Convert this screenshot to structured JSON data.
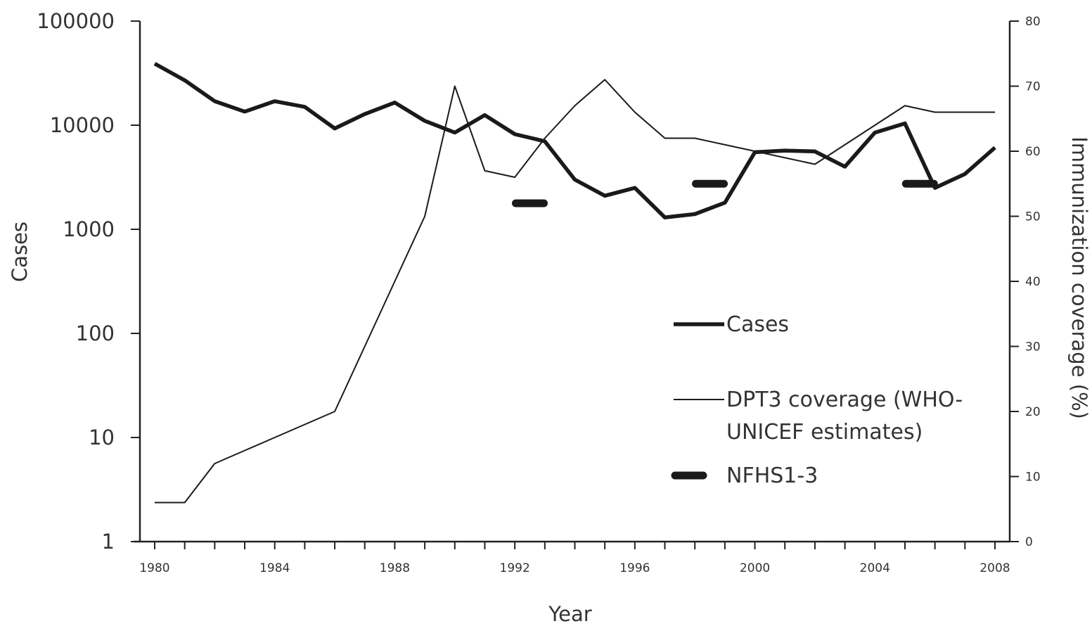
{
  "chart_data": {
    "type": "line",
    "xlabel": "Year",
    "ylabel": "Cases",
    "y2label": "Immunization coverage (%)",
    "xlim": [
      1980,
      2008
    ],
    "x_ticks": [
      1980,
      1984,
      1988,
      1992,
      1996,
      2000,
      2004,
      2008
    ],
    "ylim": [
      1,
      100000
    ],
    "y_scale": "log",
    "y_ticks": [
      1,
      10,
      100,
      1000,
      10000,
      100000
    ],
    "y2lim": [
      0,
      80
    ],
    "y2_ticks": [
      0,
      10,
      20,
      30,
      40,
      50,
      60,
      70,
      80
    ],
    "legend_position": "lower-right",
    "series": [
      {
        "name": "Cases",
        "axis": "left",
        "style": "thick-line",
        "x": [
          1980,
          1981,
          1982,
          1983,
          1984,
          1985,
          1986,
          1987,
          1988,
          1989,
          1990,
          1991,
          1992,
          1993,
          1994,
          1995,
          1996,
          1997,
          1998,
          1999,
          2000,
          2001,
          2002,
          2003,
          2004,
          2005,
          2006,
          2007,
          2008
        ],
        "values": [
          39000,
          27000,
          17000,
          13500,
          17000,
          15000,
          9300,
          12800,
          16500,
          11000,
          8500,
          12500,
          8200,
          7000,
          3000,
          2100,
          2500,
          1300,
          1400,
          1800,
          5500,
          5700,
          5600,
          4000,
          8500,
          10400,
          2500,
          3400,
          6100
        ]
      },
      {
        "name": "DPT3 coverage (WHO-UNICEF estimates)",
        "axis": "right",
        "style": "thin-line",
        "x": [
          1980,
          1981,
          1982,
          1983,
          1984,
          1985,
          1986,
          1987,
          1988,
          1989,
          1990,
          1991,
          1992,
          1993,
          1994,
          1995,
          1996,
          1997,
          1998,
          1999,
          2000,
          2001,
          2002,
          2003,
          2004,
          2005,
          2006,
          2007,
          2008
        ],
        "values": [
          6,
          6,
          12,
          14,
          16,
          18,
          20,
          30,
          40,
          50,
          70,
          57,
          56,
          62,
          67,
          71,
          66,
          62,
          62,
          61,
          60,
          59,
          58,
          61,
          64,
          67,
          66,
          66,
          66
        ]
      },
      {
        "name": "NFHS1-3",
        "axis": "right",
        "style": "thick-dash",
        "x": [
          1992.5,
          1998.5,
          2005.5
        ],
        "values": [
          52,
          55,
          55
        ]
      }
    ]
  }
}
